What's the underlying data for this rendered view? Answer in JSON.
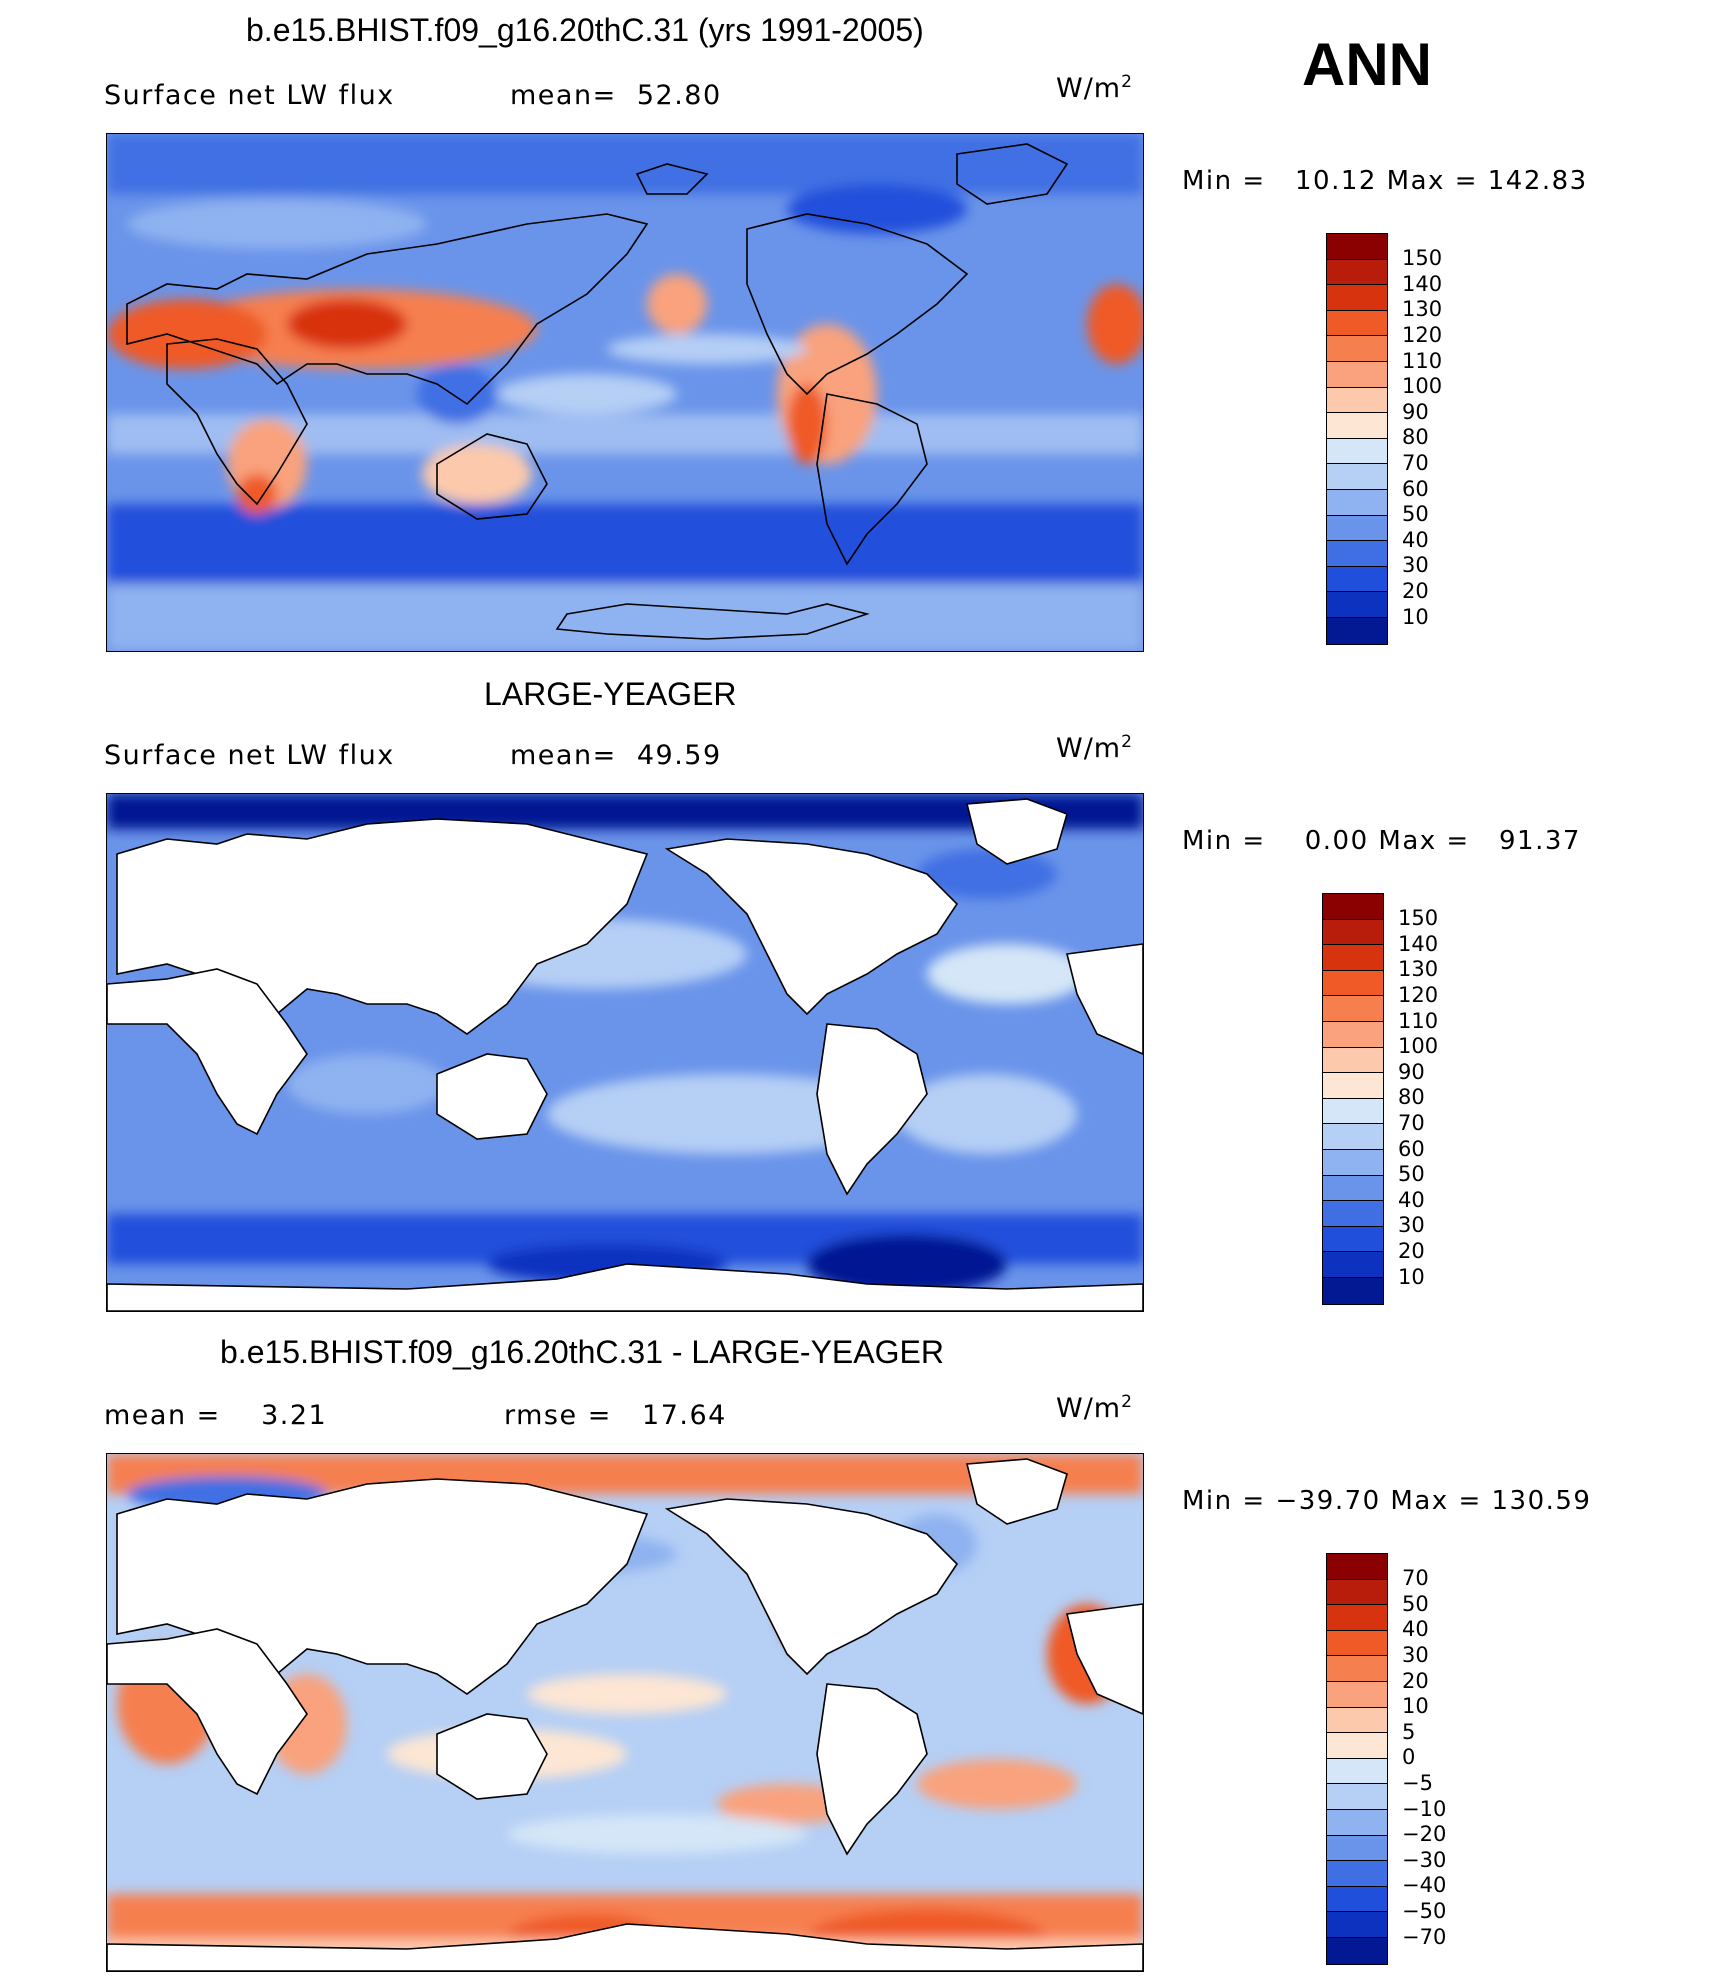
{
  "season": "ANN",
  "panels": [
    {
      "title": "b.e15.BHIST.f09_g16.20thC.31 (yrs 1991-2005)",
      "left_text": "Surface net LW flux",
      "right_text": "mean=  52.80",
      "units": "W/m",
      "units_sup": "2",
      "min_max": "Min =   10.12 Max = 142.83",
      "colorbar_labels": [
        "150",
        "140",
        "130",
        "120",
        "110",
        "100",
        "90",
        "80",
        "70",
        "60",
        "50",
        "40",
        "30",
        "20",
        "10"
      ],
      "colorbar_colors": [
        "#8b0000",
        "#b81d0b",
        "#d8330f",
        "#ef5a26",
        "#f67f4f",
        "#f9a27d",
        "#fcc9ac",
        "#fde6d3",
        "#d4e6f7",
        "#b5cff5",
        "#8fb2f0",
        "#6a94ea",
        "#3f6fe3",
        "#2050db",
        "#0c32bf",
        "#031993"
      ]
    },
    {
      "title": "LARGE-YEAGER",
      "left_text": "Surface net LW flux",
      "right_text": "mean=  49.59",
      "units": "W/m",
      "units_sup": "2",
      "min_max": "Min =    0.00 Max =   91.37",
      "colorbar_labels": [
        "150",
        "140",
        "130",
        "120",
        "110",
        "100",
        "90",
        "80",
        "70",
        "60",
        "50",
        "40",
        "30",
        "20",
        "10"
      ],
      "colorbar_colors": [
        "#8b0000",
        "#b81d0b",
        "#d8330f",
        "#ef5a26",
        "#f67f4f",
        "#f9a27d",
        "#fcc9ac",
        "#fde6d3",
        "#d4e6f7",
        "#b5cff5",
        "#8fb2f0",
        "#6a94ea",
        "#3f6fe3",
        "#2050db",
        "#0c32bf",
        "#031993"
      ]
    },
    {
      "title": "b.e15.BHIST.f09_g16.20thC.31 - LARGE-YEAGER",
      "left_text": "mean =    3.21",
      "right_text": "rmse =   17.64",
      "units": "W/m",
      "units_sup": "2",
      "min_max": "Min = −39.70 Max = 130.59",
      "colorbar_labels": [
        "70",
        "50",
        "40",
        "30",
        "20",
        "10",
        "5",
        "0",
        "−5",
        "−10",
        "−20",
        "−30",
        "−40",
        "−50",
        "−70"
      ],
      "colorbar_colors": [
        "#8b0000",
        "#b81d0b",
        "#d8330f",
        "#ef5a26",
        "#f67f4f",
        "#f9a27d",
        "#fcc9ac",
        "#fde6d3",
        "#d4e6f7",
        "#b5cff5",
        "#8fb2f0",
        "#6a94ea",
        "#3f6fe3",
        "#2050db",
        "#0c32bf",
        "#031993"
      ]
    }
  ]
}
